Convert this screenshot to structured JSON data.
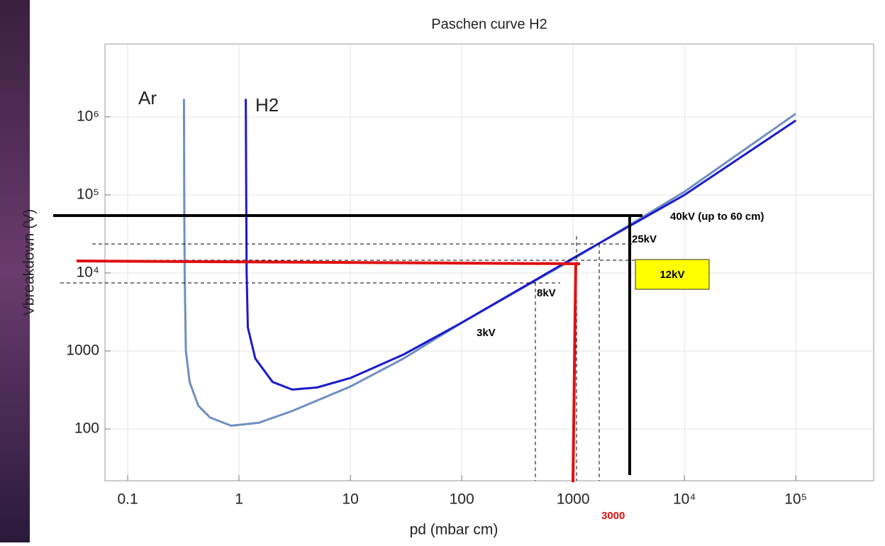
{
  "chart_data": {
    "type": "line",
    "title": "Paschen curve H2",
    "x_label": "pd (mbar cm)",
    "y_label": "Vbreakdown (V)",
    "x_scale": "log",
    "y_scale": "log",
    "grid": true,
    "xlim": [
      0.0625,
      500000
    ],
    "ylim": [
      21.7,
      8600000
    ],
    "xticks": [
      0.1,
      1,
      10,
      100,
      1000,
      {
        "value": 10000,
        "label": "10⁴"
      },
      {
        "value": 100000,
        "label": "10⁵"
      }
    ],
    "yticks": [
      100,
      1000,
      {
        "value": 10000,
        "label": "10⁴"
      },
      {
        "value": 100000,
        "label": "10⁵"
      },
      {
        "value": 1000000,
        "label": "10⁶"
      }
    ],
    "series": [
      {
        "name": "Ar",
        "color": "#6f8fbf",
        "x": [
          0.32,
          0.322,
          0.325,
          0.333,
          0.36,
          0.43,
          0.55,
          0.85,
          1.5,
          3,
          10,
          30,
          100,
          1000,
          10000,
          100000
        ],
        "values": [
          1700000,
          100000,
          10000,
          1000,
          400,
          200,
          140,
          110,
          120,
          170,
          350,
          800,
          2300,
          15000,
          110000,
          1100000
        ]
      },
      {
        "name": "H2",
        "color": "#1a1acc",
        "x": [
          1.15,
          1.16,
          1.17,
          1.2,
          1.4,
          2,
          3,
          5,
          10,
          30,
          100,
          1000,
          10000,
          100000
        ],
        "values": [
          1700000,
          100000,
          10000,
          2000,
          800,
          400,
          320,
          340,
          450,
          900,
          2300,
          15500,
          100000,
          900000
        ]
      }
    ],
    "annotations": [
      "40kV (up to 60 cm)",
      "25kV",
      "12kV",
      "8kV",
      "3kV",
      "3000"
    ]
  }
}
